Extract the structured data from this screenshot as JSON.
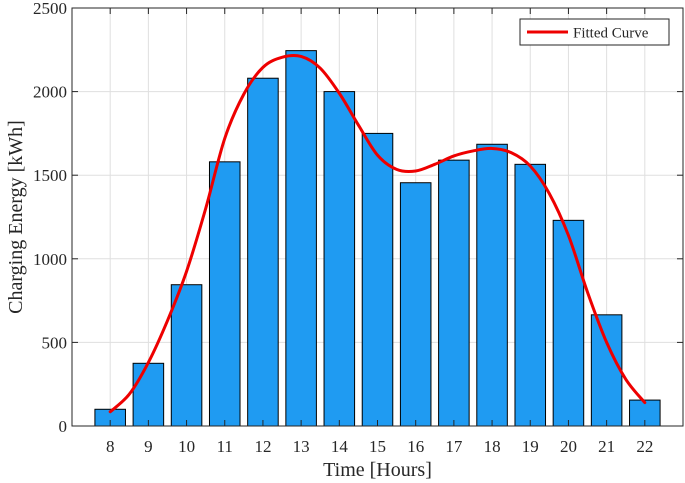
{
  "chart_data": {
    "type": "bar",
    "xlabel": "Time [Hours]",
    "ylabel": "Charging Energy [kWh]",
    "ylim": [
      0,
      2500
    ],
    "yticks": [
      0,
      500,
      1000,
      1500,
      2000,
      2500
    ],
    "categories": [
      "8",
      "9",
      "10",
      "11",
      "12",
      "13",
      "14",
      "15",
      "16",
      "17",
      "18",
      "19",
      "20",
      "21",
      "22"
    ],
    "x": [
      8,
      9,
      10,
      11,
      12,
      13,
      14,
      15,
      16,
      17,
      18,
      19,
      20,
      21,
      22
    ],
    "values": [
      100,
      375,
      845,
      1580,
      2080,
      2245,
      2000,
      1750,
      1455,
      1590,
      1685,
      1565,
      1230,
      665,
      155
    ],
    "grid": true,
    "legend_position": "top-right",
    "legend": [
      "Fitted Curve"
    ],
    "fitted_curve": {
      "name": "Fitted Curve",
      "x": [
        8,
        8.5,
        9,
        9.5,
        10,
        10.5,
        11,
        11.5,
        12,
        12.5,
        13,
        13.5,
        14,
        14.5,
        15,
        15.5,
        16,
        16.5,
        17,
        17.5,
        18,
        18.5,
        19,
        19.5,
        20,
        20.5,
        21,
        21.5,
        22
      ],
      "y": [
        85,
        190,
        380,
        630,
        925,
        1300,
        1720,
        1985,
        2145,
        2205,
        2210,
        2140,
        1990,
        1800,
        1620,
        1535,
        1525,
        1565,
        1615,
        1645,
        1660,
        1635,
        1555,
        1390,
        1140,
        800,
        500,
        280,
        140
      ]
    },
    "colors": {
      "bar_fill": "#1f9bf2",
      "bar_edge": "#000000",
      "curve": "#ee0000",
      "grid": "#dfdfdf",
      "axis": "#262626"
    }
  }
}
